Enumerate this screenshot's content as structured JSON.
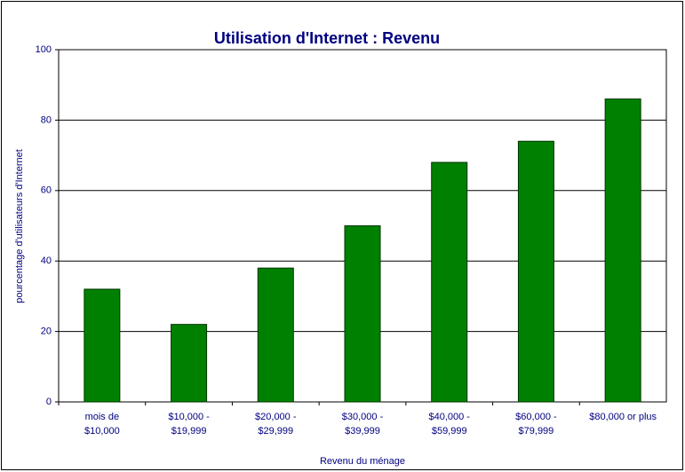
{
  "chart_data": {
    "type": "bar",
    "title": "Utilisation d'Internet :  Revenu",
    "x_label": "Revenu du ménage",
    "y_label": "pourcentage d'utilisateurs d'Internet",
    "categories": [
      "mois de\n$10,000",
      "$10,000 -\n$19,999",
      "$20,000 -\n$29,999",
      "$30,000 -\n$39,999",
      "$40,000 -\n$59,999",
      "$60,000 -\n$79,999",
      "$80,000 or plus"
    ],
    "values": [
      32,
      22,
      38,
      50,
      68,
      74,
      86
    ],
    "color": "#008000",
    "ylim": [
      0,
      100
    ],
    "yticks": [
      0,
      20,
      40,
      60,
      80,
      100
    ],
    "grid": true
  }
}
